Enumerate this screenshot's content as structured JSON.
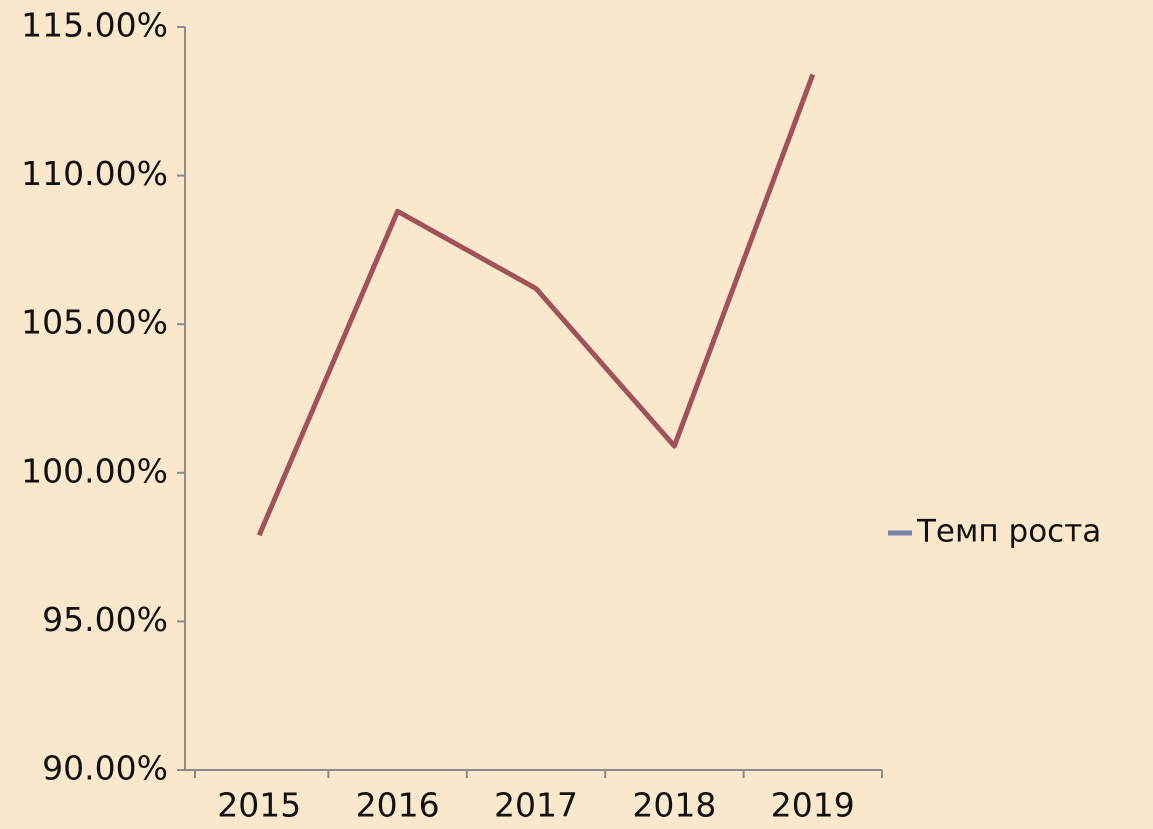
{
  "chart_data": {
    "type": "line",
    "categories": [
      "2015",
      "2016",
      "2017",
      "2018",
      "2019"
    ],
    "series": [
      {
        "name": "Темп роста",
        "color": "#a0525a",
        "values": [
          97.9,
          108.8,
          106.2,
          100.9,
          113.4
        ]
      }
    ],
    "legend_marker_color": "#7384a8",
    "ylim": [
      90,
      115
    ],
    "yticks": [
      {
        "value": 90,
        "label": "90.00%"
      },
      {
        "value": 95,
        "label": "95.00%"
      },
      {
        "value": 100,
        "label": "100.00%"
      },
      {
        "value": 105,
        "label": "105.00%"
      },
      {
        "value": 110,
        "label": "110.00%"
      },
      {
        "value": 115,
        "label": "115.00%"
      }
    ],
    "grid": false,
    "legend": "right"
  }
}
